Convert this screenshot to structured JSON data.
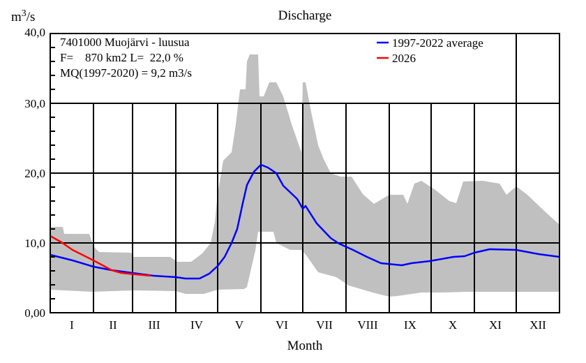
{
  "chart_data": {
    "type": "line",
    "title": "Discharge",
    "xlabel": "Month",
    "ylabel": "m3/s",
    "ylabel_base": "m",
    "ylabel_sup": "3",
    "ylabel_rest": "/s",
    "ylim": [
      0,
      40
    ],
    "xlim_days": [
      0,
      365
    ],
    "yticks": [
      {
        "value": 0,
        "label": "0,00"
      },
      {
        "value": 10,
        "label": "10,0"
      },
      {
        "value": 20,
        "label": "20,0"
      },
      {
        "value": 30,
        "label": "30,0"
      },
      {
        "value": 40,
        "label": "40,0"
      }
    ],
    "minor_tick_step": 2,
    "month_boundaries_days": [
      0,
      31,
      59,
      90,
      120,
      151,
      181,
      212,
      243,
      273,
      304,
      334,
      365
    ],
    "month_labels": [
      "I",
      "II",
      "III",
      "IV",
      "V",
      "VI",
      "VII",
      "VIII",
      "IX",
      "X",
      "XI",
      "XII"
    ],
    "info_lines": [
      "7401000 Muojärvi - luusua",
      "F=    870 km2 L=  22,0 %",
      "MQ(1997-2020) = 9,2 m3/s"
    ],
    "legend": [
      {
        "label": "1997-2022 average",
        "color": "#0000ff"
      },
      {
        "label": "2026",
        "color": "#ff0000"
      }
    ],
    "envelope": {
      "color": "#c0c0c0",
      "max": [
        [
          0,
          12.3
        ],
        [
          9,
          12.3
        ],
        [
          10,
          11.3
        ],
        [
          28,
          11.3
        ],
        [
          31,
          9.5
        ],
        [
          35,
          8.7
        ],
        [
          58,
          8.6
        ],
        [
          59,
          8.0
        ],
        [
          86,
          8.0
        ],
        [
          91,
          7.3
        ],
        [
          101,
          7.3
        ],
        [
          109,
          8.5
        ],
        [
          115,
          10
        ],
        [
          118,
          13
        ],
        [
          120,
          17
        ],
        [
          124,
          21.8
        ],
        [
          130,
          23
        ],
        [
          133,
          27
        ],
        [
          136,
          32
        ],
        [
          140,
          32
        ],
        [
          141,
          36
        ],
        [
          143,
          37
        ],
        [
          149,
          37
        ],
        [
          150,
          31
        ],
        [
          153,
          31
        ],
        [
          157,
          33
        ],
        [
          162,
          33
        ],
        [
          167,
          31
        ],
        [
          173,
          27
        ],
        [
          180,
          23
        ],
        [
          181,
          33
        ],
        [
          183,
          33
        ],
        [
          187,
          28.8
        ],
        [
          192,
          24
        ],
        [
          196,
          22
        ],
        [
          201,
          20
        ],
        [
          208,
          19.5
        ],
        [
          216,
          19.5
        ],
        [
          224,
          17
        ],
        [
          232,
          15.6
        ],
        [
          243,
          16.9
        ],
        [
          253,
          16.9
        ],
        [
          256,
          15.6
        ],
        [
          261,
          18.5
        ],
        [
          266,
          18.9
        ],
        [
          276,
          17.6
        ],
        [
          286,
          16
        ],
        [
          291,
          15.7
        ],
        [
          296,
          18.8
        ],
        [
          310,
          18.9
        ],
        [
          322,
          18.5
        ],
        [
          327,
          16.9
        ],
        [
          334,
          18.1
        ],
        [
          342,
          16.9
        ],
        [
          354,
          14.6
        ],
        [
          365,
          12.6
        ]
      ],
      "min": [
        [
          0,
          3.3
        ],
        [
          30,
          3.0
        ],
        [
          60,
          3.2
        ],
        [
          90,
          3.1
        ],
        [
          97,
          2.7
        ],
        [
          110,
          2.7
        ],
        [
          120,
          3.3
        ],
        [
          139,
          3.4
        ],
        [
          141,
          3.7
        ],
        [
          144,
          6.3
        ],
        [
          147,
          8.9
        ],
        [
          149,
          11.6
        ],
        [
          160,
          11.6
        ],
        [
          162,
          10.0
        ],
        [
          172,
          9.0
        ],
        [
          180,
          9.0
        ],
        [
          184,
          8.1
        ],
        [
          192,
          5.8
        ],
        [
          205,
          5.1
        ],
        [
          214,
          3.9
        ],
        [
          231,
          2.9
        ],
        [
          243,
          2.3
        ],
        [
          249,
          2.4
        ],
        [
          266,
          2.9
        ],
        [
          282,
          2.9
        ],
        [
          299,
          3.0
        ],
        [
          365,
          3.0
        ]
      ]
    },
    "series": [
      {
        "name": "1997-2022 average",
        "color": "#0000ff",
        "points": [
          [
            0,
            8.3
          ],
          [
            16,
            7.5
          ],
          [
            31,
            6.6
          ],
          [
            44,
            6.1
          ],
          [
            59,
            5.7
          ],
          [
            74,
            5.3
          ],
          [
            90,
            5.1
          ],
          [
            97,
            4.9
          ],
          [
            107,
            4.9
          ],
          [
            114,
            5.6
          ],
          [
            120,
            6.7
          ],
          [
            125,
            8.0
          ],
          [
            130,
            10.0
          ],
          [
            134,
            12.0
          ],
          [
            138,
            15.7
          ],
          [
            141,
            18.3
          ],
          [
            146,
            20.2
          ],
          [
            151,
            21.2
          ],
          [
            156,
            20.8
          ],
          [
            162,
            20.0
          ],
          [
            167,
            18.2
          ],
          [
            177,
            16.3
          ],
          [
            181,
            14.9
          ],
          [
            183,
            15.3
          ],
          [
            191,
            12.8
          ],
          [
            201,
            10.7
          ],
          [
            207,
            9.9
          ],
          [
            217,
            9.0
          ],
          [
            227,
            8.0
          ],
          [
            237,
            7.1
          ],
          [
            252,
            6.8
          ],
          [
            259,
            7.1
          ],
          [
            272,
            7.4
          ],
          [
            289,
            8.0
          ],
          [
            297,
            8.1
          ],
          [
            304,
            8.6
          ],
          [
            315,
            9.1
          ],
          [
            334,
            9.0
          ],
          [
            350,
            8.4
          ],
          [
            365,
            8.0
          ]
        ]
      },
      {
        "name": "2026",
        "color": "#ff0000",
        "points": [
          [
            0,
            11.0
          ],
          [
            8,
            10.1
          ],
          [
            16,
            9.0
          ],
          [
            31,
            7.5
          ],
          [
            44,
            6.1
          ],
          [
            51,
            5.7
          ],
          [
            61,
            5.5
          ],
          [
            72,
            5.3
          ]
        ]
      }
    ]
  }
}
